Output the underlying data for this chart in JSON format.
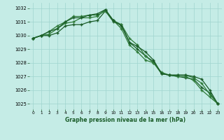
{
  "xlabel": "Graphe pression niveau de la mer (hPa)",
  "background_color": "#c5ece6",
  "grid_color": "#9fd4ce",
  "line_colors": [
    "#1a5c28",
    "#2d7a38",
    "#2d7a38",
    "#1a5c28"
  ],
  "x_ticks": [
    0,
    1,
    2,
    3,
    4,
    5,
    6,
    7,
    8,
    9,
    10,
    11,
    12,
    13,
    14,
    15,
    16,
    17,
    18,
    19,
    20,
    21,
    22,
    23
  ],
  "ylim": [
    1024.6,
    1032.4
  ],
  "yticks": [
    1025,
    1026,
    1027,
    1028,
    1029,
    1030,
    1031,
    1032
  ],
  "series": [
    [
      1029.8,
      1030.0,
      1030.0,
      1030.2,
      1030.7,
      1030.8,
      1030.8,
      1031.0,
      1031.1,
      1031.8,
      1031.0,
      1030.8,
      1029.5,
      1029.0,
      1028.5,
      1028.1,
      1027.2,
      1027.1,
      1027.0,
      1026.9,
      1026.8,
      1026.2,
      1025.8,
      1025.0
    ],
    [
      1029.8,
      1030.0,
      1030.1,
      1030.5,
      1030.9,
      1031.0,
      1031.3,
      1031.3,
      1031.4,
      1031.9,
      1031.1,
      1030.8,
      1029.8,
      1029.3,
      1028.5,
      1028.0,
      1027.3,
      1027.1,
      1027.0,
      1027.0,
      1026.7,
      1026.0,
      1025.5,
      1025.0
    ],
    [
      1029.8,
      1030.0,
      1030.3,
      1030.7,
      1031.0,
      1031.4,
      1031.4,
      1031.5,
      1031.5,
      1031.8,
      1031.1,
      1030.5,
      1029.3,
      1028.8,
      1028.2,
      1028.0,
      1027.2,
      1027.1,
      1027.1,
      1027.1,
      1026.9,
      1026.5,
      1025.7,
      1025.0
    ],
    [
      1029.8,
      1030.0,
      1030.3,
      1030.5,
      1031.0,
      1031.3,
      1031.3,
      1031.5,
      1031.6,
      1031.9,
      1031.1,
      1030.7,
      1029.5,
      1029.2,
      1028.8,
      1028.2,
      1027.2,
      1027.1,
      1027.1,
      1027.1,
      1027.0,
      1026.8,
      1026.0,
      1025.0
    ]
  ],
  "marker_size": 3.5,
  "line_width": 0.9,
  "markeredgewidth": 1.0
}
